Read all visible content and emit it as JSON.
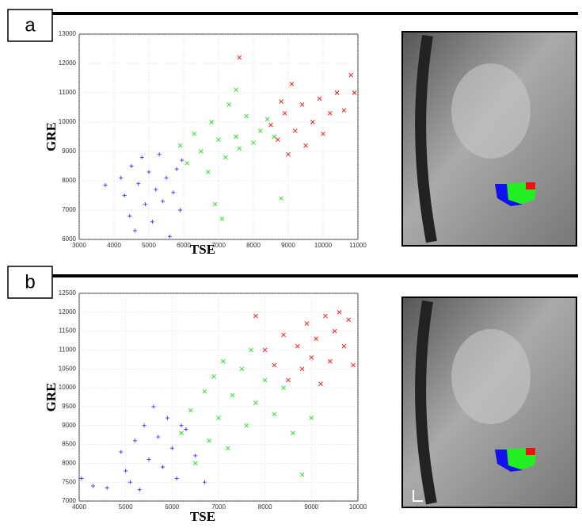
{
  "chart_data": [
    {
      "type": "scatter",
      "panel_label": "a",
      "xlabel": "TSE",
      "ylabel": "GRE",
      "xlim": [
        3000,
        11000
      ],
      "ylim": [
        6000,
        13000
      ],
      "xticks": [
        3000,
        4000,
        5000,
        6000,
        7000,
        8000,
        9000,
        10000,
        11000
      ],
      "yticks": [
        6000,
        7000,
        8000,
        9000,
        10000,
        11000,
        12000,
        13000
      ],
      "grid": true,
      "series": [
        {
          "color": "#3333ff",
          "marker": "plus",
          "x": [
            3750,
            4200,
            4300,
            4450,
            4500,
            4600,
            4700,
            4800,
            4900,
            5000,
            5100,
            5200,
            5300,
            5400,
            5500,
            5600,
            5700,
            5800,
            5900,
            5950
          ],
          "y": [
            7850,
            8100,
            7500,
            6800,
            8500,
            6300,
            7900,
            8800,
            7200,
            8300,
            6600,
            7700,
            8900,
            7300,
            8100,
            6100,
            7600,
            8400,
            7000,
            8700
          ]
        },
        {
          "color": "#22dd22",
          "marker": "cross",
          "x": [
            5900,
            6100,
            6300,
            6500,
            6700,
            6800,
            7000,
            7100,
            7200,
            7300,
            7500,
            7600,
            7800,
            8000,
            8200,
            8400,
            8600,
            7500,
            6900,
            8800
          ],
          "y": [
            9200,
            8600,
            9600,
            9000,
            8300,
            10000,
            9400,
            6700,
            8800,
            10600,
            9500,
            9100,
            10200,
            9300,
            9700,
            10100,
            9500,
            11100,
            7200,
            7400
          ]
        },
        {
          "color": "#ee1111",
          "marker": "cross",
          "x": [
            7600,
            8500,
            8700,
            8900,
            9000,
            9200,
            9400,
            9500,
            9700,
            9900,
            10000,
            10200,
            10400,
            10600,
            10800,
            10900,
            9100,
            8800
          ],
          "y": [
            12200,
            9900,
            9400,
            10300,
            8900,
            9700,
            10600,
            9200,
            10000,
            10800,
            9600,
            10300,
            11000,
            10400,
            11600,
            11000,
            11300,
            10700
          ]
        }
      ]
    },
    {
      "type": "scatter",
      "panel_label": "b",
      "xlabel": "TSE",
      "ylabel": "GRE",
      "xlim": [
        4000,
        10000
      ],
      "ylim": [
        7000,
        12500
      ],
      "xticks": [
        4000,
        5000,
        6000,
        7000,
        8000,
        9000,
        10000
      ],
      "yticks": [
        7000,
        7500,
        8000,
        8500,
        9000,
        9500,
        10000,
        10500,
        11000,
        11500,
        12000,
        12500
      ],
      "grid": true,
      "series": [
        {
          "color": "#3333ff",
          "marker": "plus",
          "x": [
            4050,
            4300,
            4600,
            4900,
            5000,
            5200,
            5300,
            5400,
            5500,
            5600,
            5700,
            5800,
            5900,
            6000,
            6100,
            6300,
            6500,
            6700,
            5100,
            6200
          ],
          "y": [
            7600,
            7400,
            7350,
            8300,
            7800,
            8600,
            7300,
            9000,
            8100,
            9500,
            8700,
            7900,
            9200,
            8400,
            7600,
            8900,
            8200,
            7500,
            7500,
            9000
          ]
        },
        {
          "color": "#22dd22",
          "marker": "cross",
          "x": [
            6200,
            6400,
            6500,
            6700,
            6800,
            6900,
            7000,
            7100,
            7200,
            7300,
            7500,
            7600,
            7700,
            7800,
            8000,
            8200,
            8400,
            8600,
            8800,
            9000
          ],
          "y": [
            8800,
            9400,
            8000,
            9900,
            8600,
            10300,
            9200,
            10700,
            8400,
            9800,
            10500,
            9000,
            11000,
            9600,
            10200,
            9300,
            10000,
            8800,
            7700,
            9200
          ]
        },
        {
          "color": "#ee1111",
          "marker": "cross",
          "x": [
            7800,
            8000,
            8200,
            8400,
            8500,
            8700,
            8800,
            8900,
            9000,
            9100,
            9200,
            9300,
            9400,
            9500,
            9600,
            9700,
            9800,
            9900
          ],
          "y": [
            11900,
            11000,
            10600,
            11400,
            10200,
            11100,
            10500,
            11700,
            10800,
            11300,
            10100,
            11900,
            10700,
            11500,
            12000,
            11100,
            11800,
            10600
          ]
        }
      ]
    }
  ]
}
